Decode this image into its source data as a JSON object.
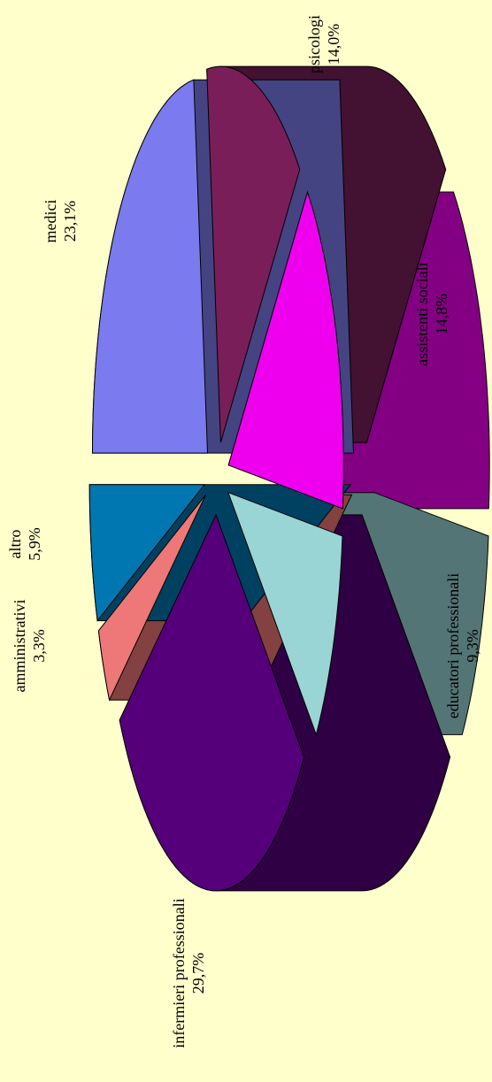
{
  "chart_data": {
    "type": "pie",
    "categories": [
      "medici",
      "psicologi",
      "assistenti sociali",
      "educatori professionali",
      "infermieri  professionali",
      "amministrativi",
      "altro"
    ],
    "values": [
      23.1,
      14.0,
      14.8,
      9.3,
      29.7,
      3.3,
      5.9
    ],
    "value_labels": [
      "23,1%",
      "14,0%",
      "14,8%",
      "9,3%",
      "29,7%",
      "3,3%",
      "5,9%"
    ],
    "colors": [
      "#7b7bef",
      "#7a1e5a",
      "#ee00ee",
      "#99d5d5",
      "#55007a",
      "#ee7777",
      "#0077b0"
    ]
  }
}
